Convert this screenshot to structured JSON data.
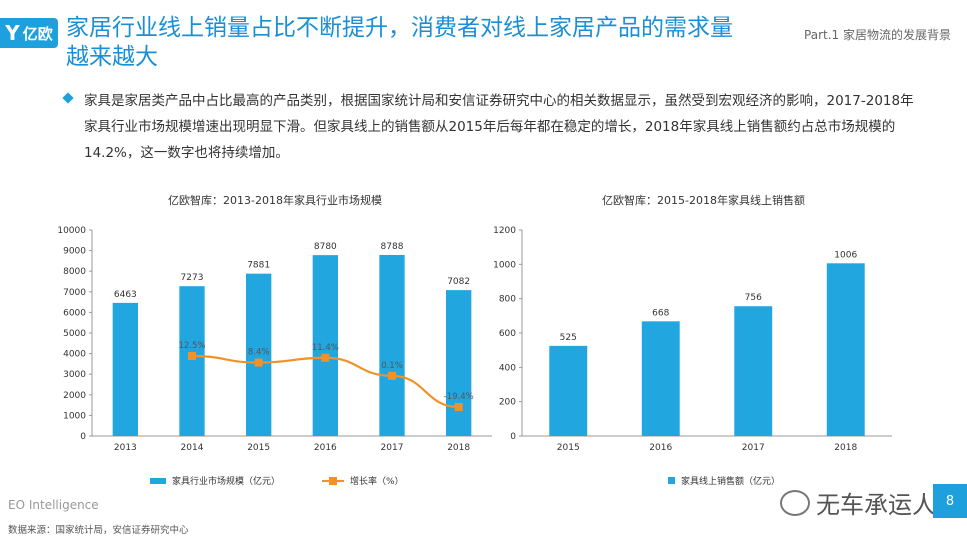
{
  "header": {
    "logo_text": "亿欧",
    "title": "家居行业线上销量占比不断提升，消费者对线上家居产品的需求量越来越大",
    "part_label": "Part.1 家居物流的发展背景"
  },
  "body": {
    "paragraph": "家具是家居类产品中占比最高的产品类别，根据国家统计局和安信证券研究中心的相关数据显示，虽然受到宏观经济的影响，2017-2018年家具行业市场规模增速出现明显下滑。但家具线上的销售额从2015年后每年都在稳定的增长，2018年家具线上销售额约占总市场规模的14.2%，这一数字也将持续增加。"
  },
  "chart_data": [
    {
      "type": "bar",
      "title": "亿欧智库：2013-2018年家具行业市场规模",
      "categories": [
        "2013",
        "2014",
        "2015",
        "2016",
        "2017",
        "2018"
      ],
      "series": [
        {
          "name": "家具行业市场规模（亿元）",
          "type": "bar",
          "values": [
            6463,
            7273,
            7881,
            8780,
            8788,
            7082
          ],
          "color": "#22a6e0"
        },
        {
          "name": "增长率（%）",
          "type": "line",
          "values": [
            null,
            12.5,
            8.4,
            11.4,
            0.1,
            -19.4
          ],
          "labels": [
            "",
            "12.5%",
            "8.4%",
            "11.4%",
            "0.1%",
            "-19.4%"
          ],
          "color": "#f0922a"
        }
      ],
      "y_ticks": [
        "0",
        "1000",
        "2000",
        "3000",
        "4000",
        "5000",
        "6000",
        "7000",
        "8000",
        "9000",
        "10000"
      ],
      "ylim": [
        0,
        10000
      ],
      "grid": false,
      "legend": "bottom"
    },
    {
      "type": "bar",
      "title": "亿欧智库：2015-2018年家具线上销售额",
      "categories": [
        "2015",
        "2016",
        "2017",
        "2018"
      ],
      "series": [
        {
          "name": "家具线上销售额（亿元）",
          "values": [
            525,
            668,
            756,
            1006
          ],
          "color": "#22a6e0"
        }
      ],
      "y_ticks": [
        "0",
        "200",
        "400",
        "600",
        "800",
        "1000",
        "1200"
      ],
      "ylim": [
        0,
        1200
      ],
      "grid": false,
      "legend": "bottom"
    }
  ],
  "footer": {
    "brand": "EO Intelligence",
    "source": "数据来源：国家统计局，安信证券研究中心",
    "watermark": "无车承运人",
    "page_number": "8"
  }
}
